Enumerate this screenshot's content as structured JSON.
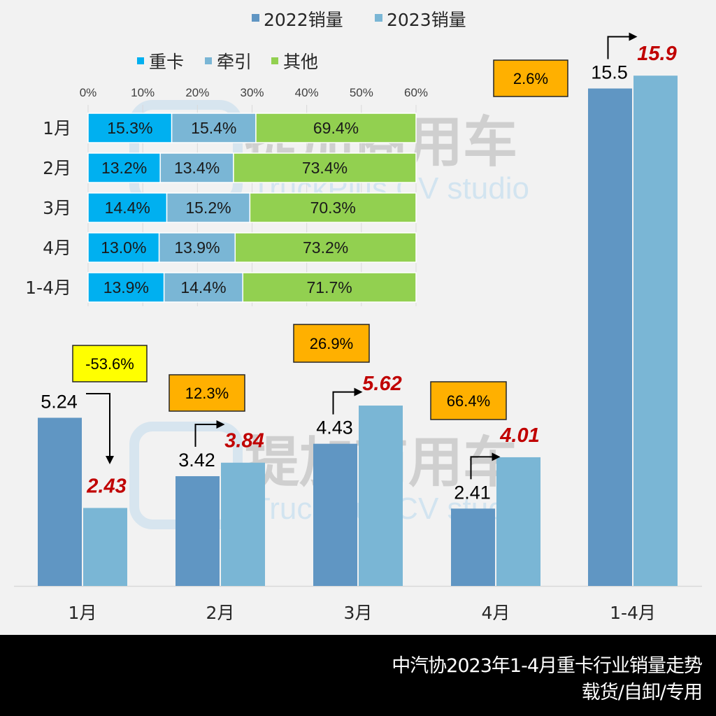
{
  "colors": {
    "s2022": "#6096c3",
    "s2023": "#7ab6d5",
    "heavy": "#00b0f0",
    "tractor": "#7ab6d5",
    "other": "#92d050",
    "value2023": "#c00000",
    "badge_up": "#ffb000",
    "badge_down": "#ffff00",
    "footer_bg": "#000000"
  },
  "watermark": {
    "cn": "提加商用车",
    "en": "TruckPlus CV studio"
  },
  "footer": {
    "line1": "中汽协2023年1-4月重卡行业销量走势",
    "line2": "载货/自卸/专用"
  },
  "chart_data": [
    {
      "type": "bar",
      "title": "",
      "categories": [
        "1月",
        "2月",
        "3月",
        "4月",
        "1-4月"
      ],
      "series": [
        {
          "name": "2022销量",
          "values": [
            5.24,
            3.42,
            4.43,
            2.41,
            15.5
          ],
          "labels": [
            "5.24",
            "3.42",
            "4.43",
            "2.41",
            "15.5"
          ]
        },
        {
          "name": "2023销量",
          "values": [
            2.43,
            3.84,
            5.62,
            4.01,
            15.9
          ],
          "labels": [
            "2.43",
            "3.84",
            "5.62",
            "4.01",
            "15.9"
          ]
        }
      ],
      "growth": [
        "-53.6%",
        "12.3%",
        "26.9%",
        "66.4%",
        "2.6%"
      ],
      "growth_direction": [
        "down",
        "up",
        "up",
        "up",
        "up"
      ],
      "ylim": [
        0,
        16.5
      ],
      "legend": {
        "position": "top-center",
        "entries": [
          "2022销量",
          "2023销量"
        ]
      },
      "grid": false
    },
    {
      "type": "bar",
      "orientation": "horizontal-stacked",
      "title": "",
      "categories": [
        "1月",
        "2月",
        "3月",
        "4月",
        "1-4月"
      ],
      "series": [
        {
          "name": "重卡",
          "values": [
            15.3,
            13.2,
            14.4,
            13.0,
            13.9
          ],
          "labels": [
            "15.3%",
            "13.2%",
            "14.4%",
            "13.0%",
            "13.9%"
          ]
        },
        {
          "name": "牵引",
          "values": [
            15.4,
            13.4,
            15.2,
            13.9,
            14.4
          ],
          "labels": [
            "15.4%",
            "13.4%",
            "15.2%",
            "13.9%",
            "14.4%"
          ]
        },
        {
          "name": "其他",
          "values": [
            69.4,
            73.4,
            70.3,
            73.2,
            71.7
          ],
          "labels": [
            "69.4%",
            "73.4%",
            "70.3%",
            "73.2%",
            "71.7%"
          ]
        }
      ],
      "xlim": [
        0,
        60
      ],
      "xticks": [
        "0%",
        "10%",
        "20%",
        "30%",
        "40%",
        "50%",
        "60%"
      ],
      "legend": {
        "position": "top-left",
        "entries": [
          "重卡",
          "牵引",
          "其他"
        ]
      },
      "grid": true
    }
  ]
}
